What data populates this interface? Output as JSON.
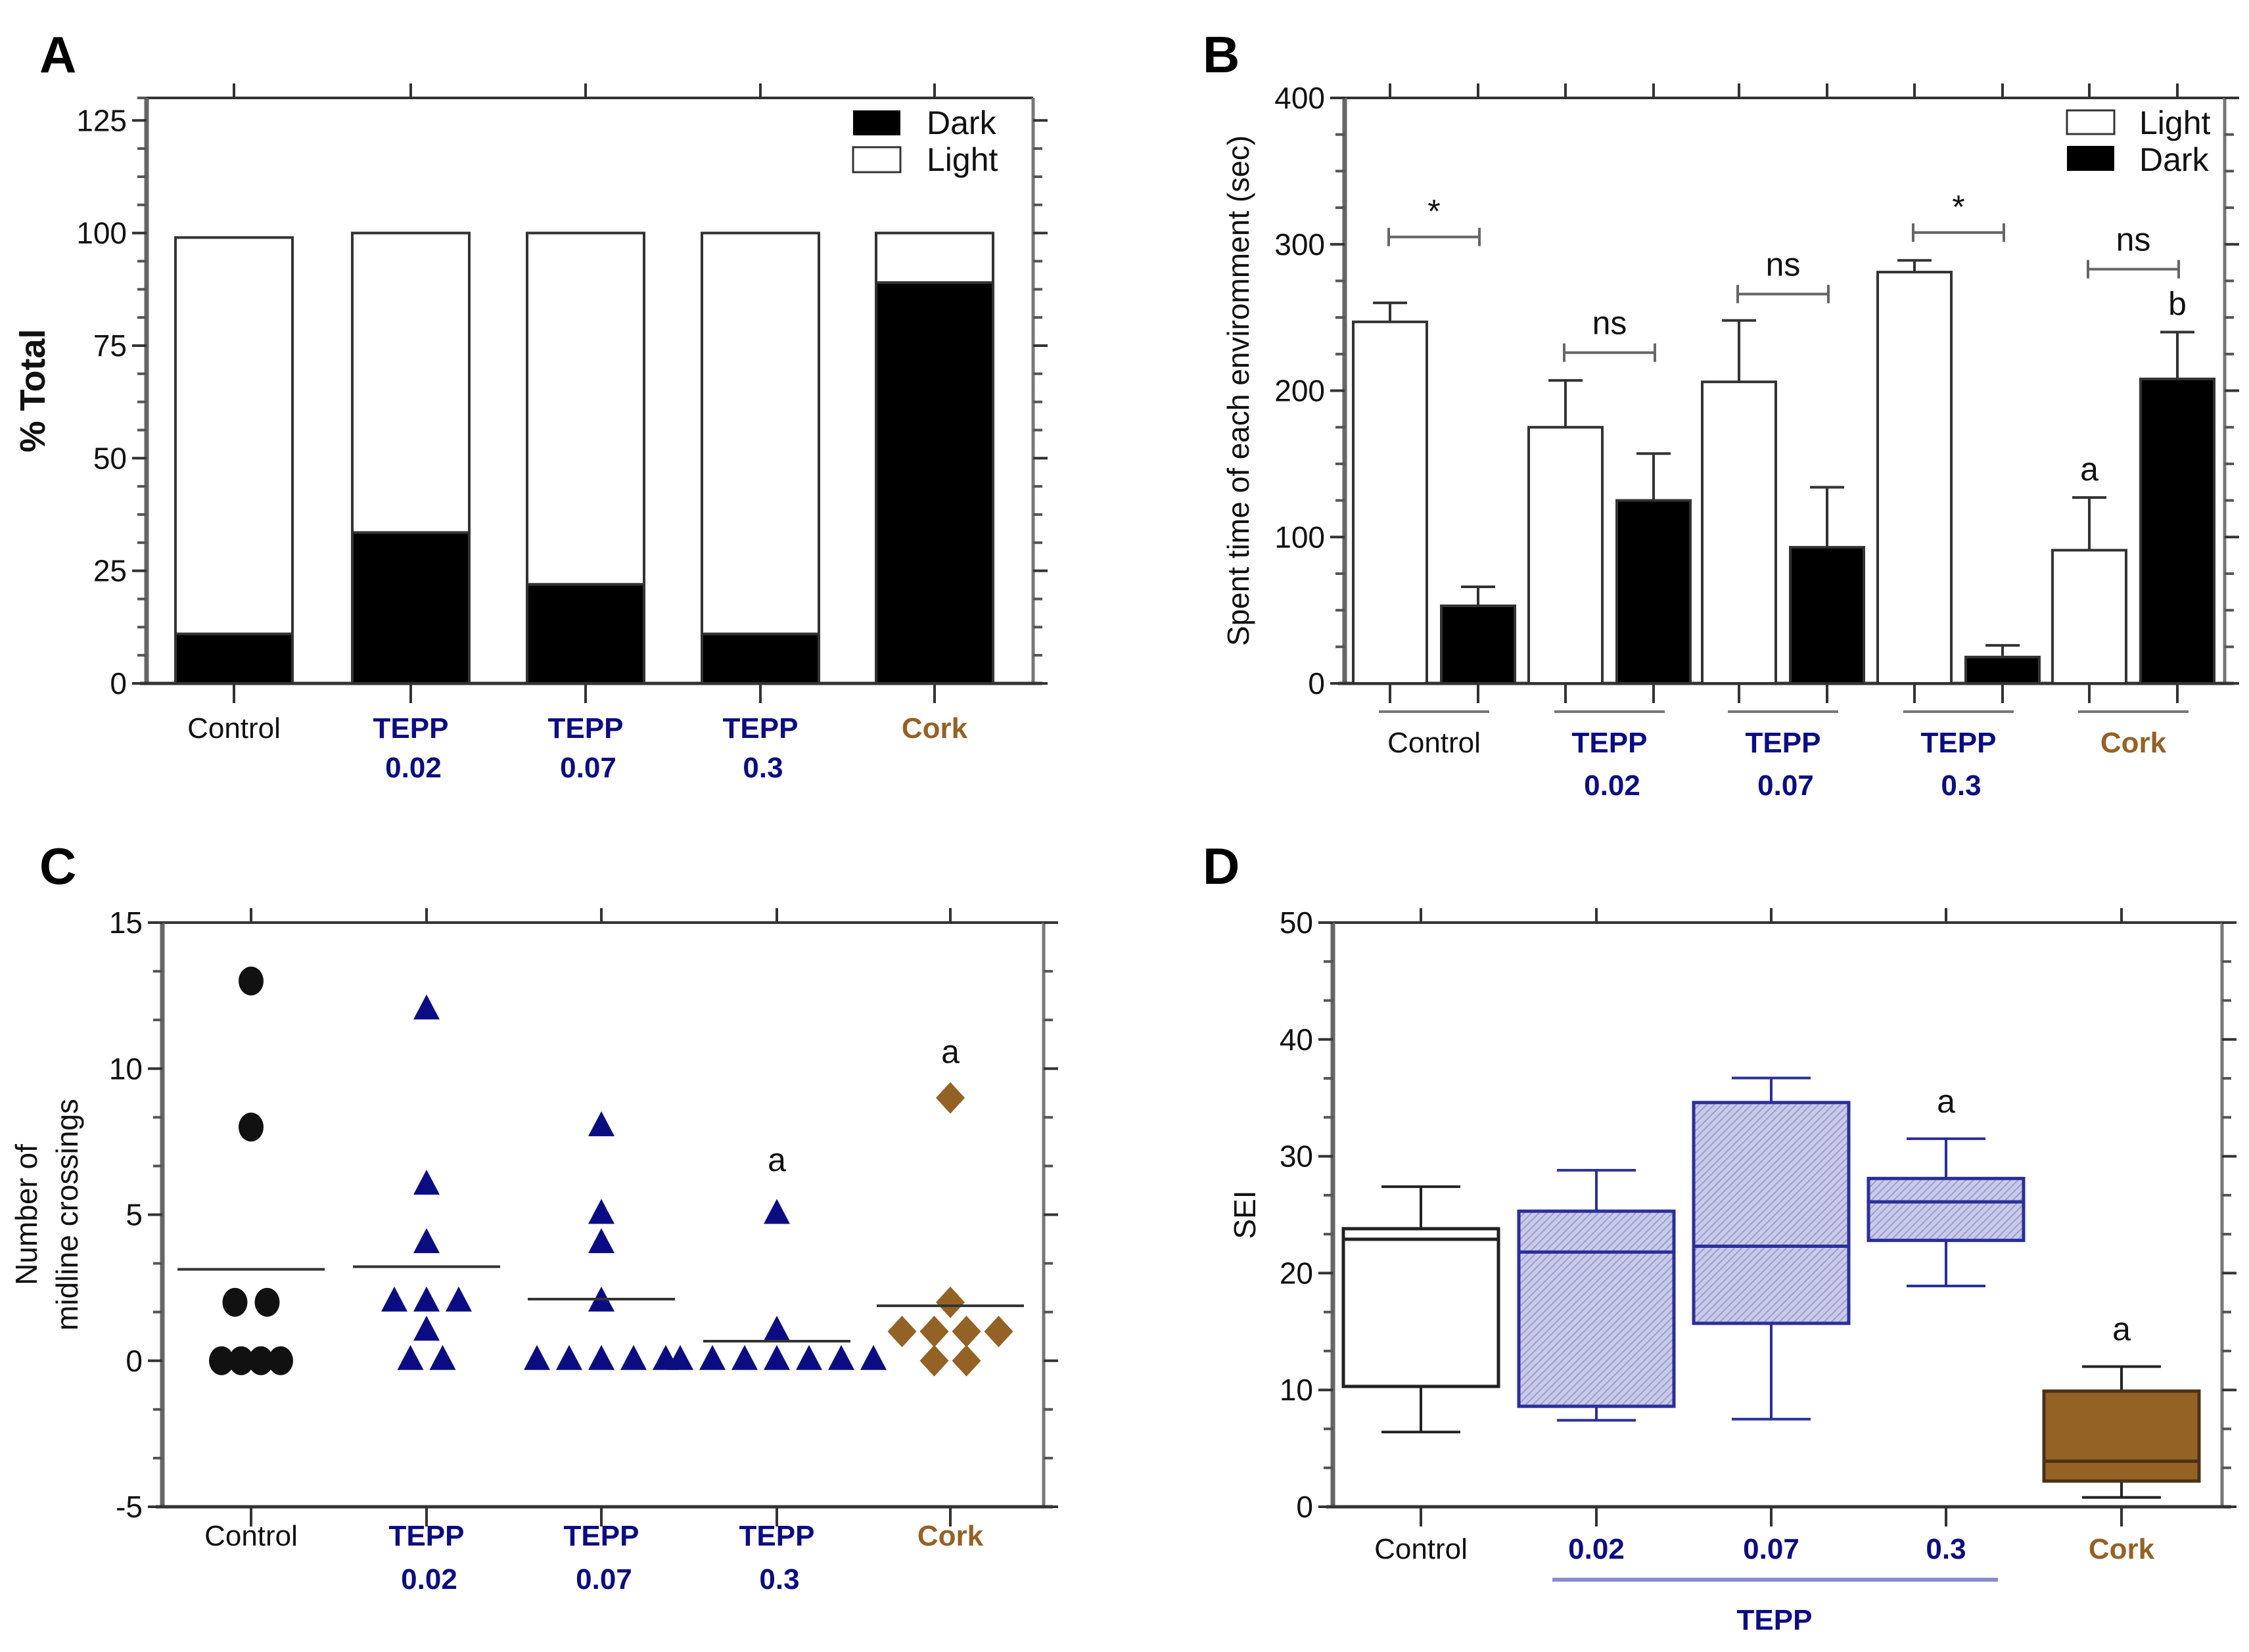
{
  "colors": {
    "tepp": "#0c0c82",
    "cork": "#946225",
    "tepp_fill": "#c6c7e4",
    "tepp_stroke": "#2b2f9a",
    "black": "#000000",
    "gray": "#777777"
  },
  "chart_data": [
    {
      "panel": "A",
      "type": "bar",
      "stacked": true,
      "title": "",
      "xlabel": "",
      "ylabel": "% Total",
      "ylim": [
        0,
        130
      ],
      "yticks": [
        0,
        25,
        50,
        75,
        100,
        125
      ],
      "categories": [
        {
          "line1": "Control",
          "line2": "",
          "color_key": "black",
          "bold": false
        },
        {
          "line1": "TEPP",
          "line2": "0.02",
          "color_key": "tepp",
          "bold": true
        },
        {
          "line1": "TEPP",
          "line2": "0.07",
          "color_key": "tepp",
          "bold": true
        },
        {
          "line1": "TEPP",
          "line2": "0.3",
          "color_key": "tepp",
          "bold": true
        },
        {
          "line1": "Cork",
          "line2": "",
          "color_key": "cork",
          "bold": true
        }
      ],
      "series": [
        {
          "name": "Dark",
          "fill": "#000000",
          "values": [
            11,
            33.5,
            22,
            11,
            89
          ]
        },
        {
          "name": "Light",
          "fill": "#ffffff",
          "values": [
            88,
            66.5,
            78,
            89,
            11
          ]
        }
      ],
      "legend": {
        "placement": "top-right",
        "entries": [
          "Dark",
          "Light"
        ]
      }
    },
    {
      "panel": "B",
      "type": "bar",
      "grouped": true,
      "xlabel": "",
      "ylabel": "Spent time of each enviromment (sec)",
      "ylim": [
        0,
        400
      ],
      "yticks": [
        0,
        100,
        200,
        300,
        400
      ],
      "categories": [
        {
          "line1": "Control",
          "line2": "",
          "color_key": "black",
          "bold": false
        },
        {
          "line1": "TEPP",
          "line2": "0.02",
          "color_key": "tepp",
          "bold": true
        },
        {
          "line1": "TEPP",
          "line2": "0.07",
          "color_key": "tepp",
          "bold": true
        },
        {
          "line1": "TEPP",
          "line2": "0.3",
          "color_key": "tepp",
          "bold": true
        },
        {
          "line1": "Cork",
          "line2": "",
          "color_key": "cork",
          "bold": true
        }
      ],
      "series": [
        {
          "name": "Light",
          "fill": "#ffffff",
          "values": [
            247,
            175,
            206,
            281,
            91
          ],
          "error": [
            13,
            32,
            42,
            8,
            36
          ]
        },
        {
          "name": "Dark",
          "fill": "#000000",
          "values": [
            53,
            125,
            93,
            18,
            208
          ],
          "error": [
            13,
            32,
            41,
            8,
            32
          ]
        }
      ],
      "comparisons": [
        {
          "label": "*",
          "y": 305
        },
        {
          "label": "ns",
          "y": 226
        },
        {
          "label": "ns",
          "y": 266
        },
        {
          "label": "*",
          "y": 308
        },
        {
          "label": "ns",
          "y": 283
        }
      ],
      "letters": [
        {
          "category": 4,
          "series": 0,
          "label": "a"
        },
        {
          "category": 4,
          "series": 1,
          "label": "b"
        }
      ],
      "legend": {
        "placement": "top-right",
        "entries": [
          "Light",
          "Dark"
        ]
      }
    },
    {
      "panel": "C",
      "type": "scatter",
      "xlabel": "",
      "ylabel_lines": [
        "Number of",
        "midline crossings"
      ],
      "ylim": [
        -5,
        15
      ],
      "yticks": [
        -5,
        0,
        5,
        10,
        15
      ],
      "categories": [
        {
          "line1": "Control",
          "line2": "",
          "color_key": "black",
          "bold": false,
          "marker": "circle"
        },
        {
          "line1": "TEPP",
          "line2": "0.02",
          "color_key": "tepp",
          "bold": true,
          "marker": "triangle"
        },
        {
          "line1": "TEPP",
          "line2": "0.07",
          "color_key": "tepp",
          "bold": true,
          "marker": "triangle"
        },
        {
          "line1": "TEPP",
          "line2": "0.3",
          "color_key": "tepp",
          "bold": true,
          "marker": "triangle"
        },
        {
          "line1": "Cork",
          "line2": "",
          "color_key": "cork",
          "bold": true,
          "marker": "diamond"
        }
      ],
      "points": [
        [
          13,
          8,
          2,
          2,
          0,
          0,
          0,
          0
        ],
        [
          12,
          6,
          4,
          2,
          2,
          2,
          1,
          0,
          0
        ],
        [
          8,
          5,
          4,
          2,
          0,
          0,
          0,
          0,
          0
        ],
        [
          5,
          1,
          0,
          0,
          0,
          0,
          0,
          0,
          0
        ],
        [
          9,
          2,
          1,
          1,
          1,
          1,
          0,
          0
        ]
      ],
      "means": [
        3.13,
        3.22,
        2.11,
        0.67,
        1.88
      ],
      "letters": [
        {
          "category": 3,
          "label": "a",
          "y": 6.5
        },
        {
          "category": 4,
          "label": "a",
          "y": 10.2
        }
      ]
    },
    {
      "panel": "D",
      "type": "box",
      "xlabel": "",
      "ylabel": "SEI",
      "ylim": [
        0,
        50
      ],
      "yticks": [
        0,
        10,
        20,
        30,
        40,
        50
      ],
      "group_label": "TEPP",
      "categories": [
        {
          "line1": "Control",
          "color_key": "black",
          "bold": false
        },
        {
          "line1": "0.02",
          "color_key": "tepp",
          "bold": true
        },
        {
          "line1": "0.07",
          "color_key": "tepp",
          "bold": true
        },
        {
          "line1": "0.3",
          "color_key": "tepp",
          "bold": true
        },
        {
          "line1": "Cork",
          "color_key": "cork",
          "bold": true
        }
      ],
      "boxes": [
        {
          "min": 6.4,
          "q1": 10.3,
          "median": 22.9,
          "q3": 23.8,
          "max": 27.4,
          "style": "white"
        },
        {
          "min": 7.4,
          "q1": 8.6,
          "median": 21.8,
          "q3": 25.3,
          "max": 28.8,
          "style": "tepp"
        },
        {
          "min": 7.5,
          "q1": 15.7,
          "median": 22.3,
          "q3": 34.6,
          "max": 36.7,
          "style": "tepp"
        },
        {
          "min": 18.9,
          "q1": 22.8,
          "median": 26.1,
          "q3": 28.1,
          "max": 31.5,
          "style": "tepp"
        },
        {
          "min": 0.8,
          "q1": 2.2,
          "median": 3.9,
          "q3": 9.9,
          "max": 12.0,
          "style": "cork"
        }
      ],
      "letters": [
        {
          "category": 3,
          "label": "a"
        },
        {
          "category": 4,
          "label": "a"
        }
      ]
    }
  ]
}
